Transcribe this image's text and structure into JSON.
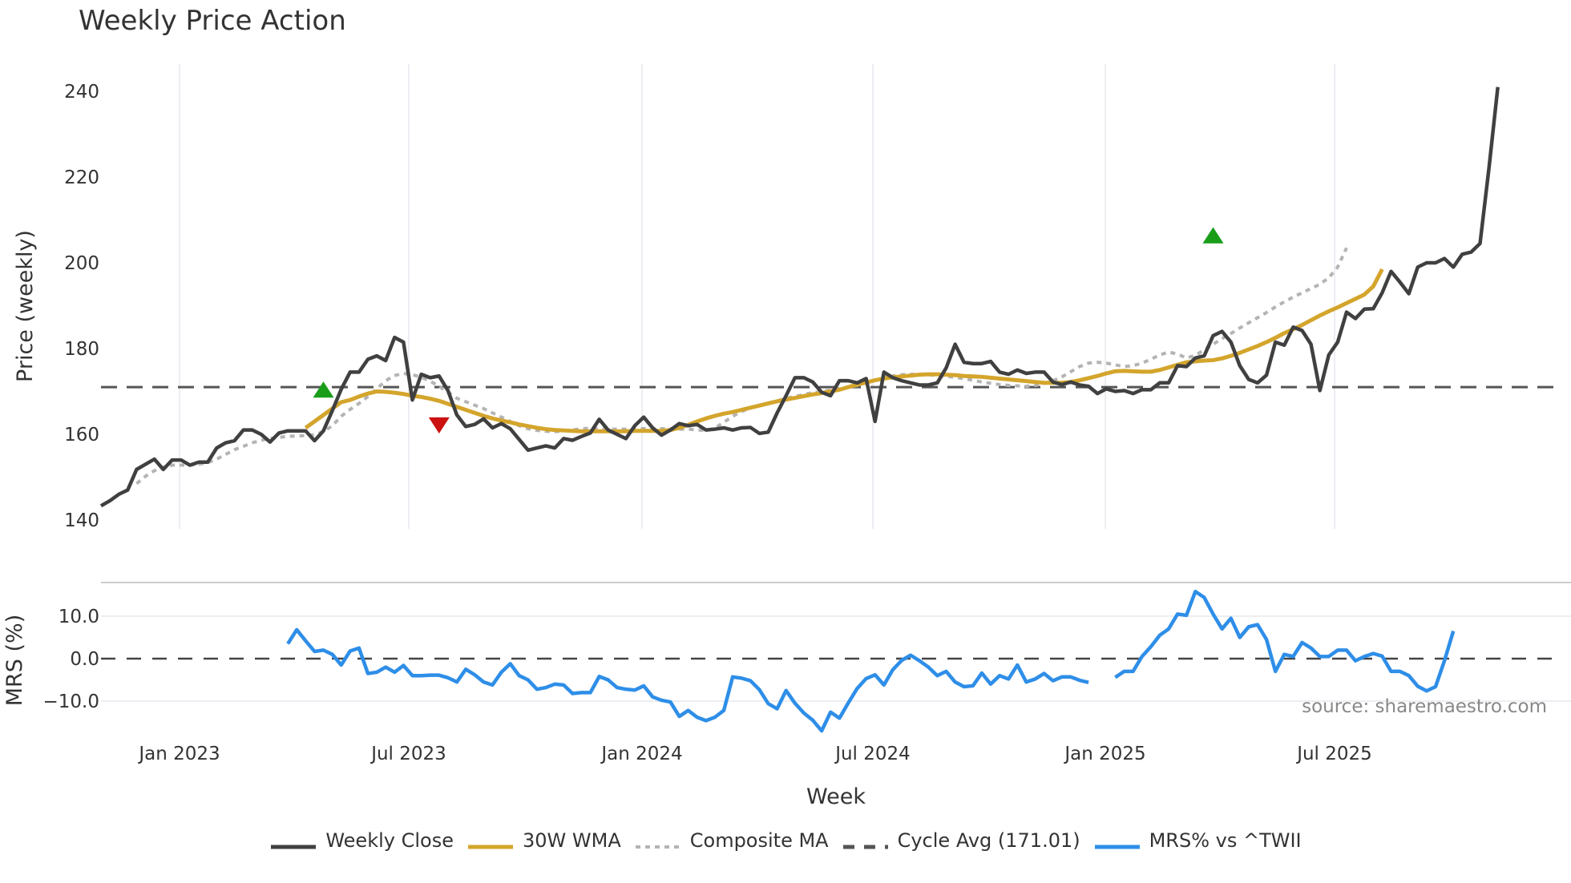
{
  "title": "Weekly Price Action",
  "source_note": "source: sharemaestro.com",
  "legend": [
    {
      "label": "Weekly Close",
      "color": "#404040",
      "style": "solid"
    },
    {
      "label": "30W WMA",
      "color": "#D4A52C",
      "style": "solid"
    },
    {
      "label": "Composite MA",
      "color": "#B4B4B4",
      "style": "dotted"
    },
    {
      "label": "Cycle Avg (171.01)",
      "color": "#555555",
      "style": "dashed"
    },
    {
      "label": "MRS% vs ^TWII",
      "color": "#2E8EE8",
      "style": "solid"
    }
  ],
  "chart_data": [
    {
      "type": "line",
      "title": "Weekly Price Action",
      "xlabel": "Week",
      "ylabel": "Price (weekly)",
      "ylim": [
        140,
        240
      ],
      "yticks": [
        140,
        160,
        180,
        200,
        220,
        240
      ],
      "xticks": [
        "Jan 2023",
        "Jul 2023",
        "Jan 2024",
        "Jul 2024",
        "Jan 2025",
        "Jul 2025"
      ],
      "grid": "vertical",
      "legend_position": "bottom",
      "week_start": "2022-11-07",
      "series": [
        {
          "name": "Weekly Close",
          "color": "#404040",
          "values": [
            143.3,
            144.5,
            146.0,
            147.0,
            151.8,
            153.0,
            154.2,
            151.8,
            154.0,
            154.0,
            152.8,
            153.5,
            153.5,
            156.8,
            158.0,
            158.5,
            161.0,
            161.0,
            160.0,
            158.2,
            160.3,
            160.8,
            160.8,
            160.8,
            158.5,
            160.8,
            165.5,
            170.5,
            174.5,
            174.5,
            177.5,
            178.3,
            177.2,
            182.6,
            181.5,
            168.0,
            174.0,
            173.2,
            173.6,
            170.2,
            164.5,
            161.8,
            162.3,
            163.6,
            161.5,
            162.5,
            161.3,
            158.8,
            156.3,
            156.8,
            157.3,
            156.8,
            159.0,
            158.6,
            159.5,
            160.3,
            163.5,
            161.0,
            160.0,
            159.0,
            162.0,
            164.0,
            161.5,
            159.8,
            161.0,
            162.5,
            162.0,
            162.3,
            161.0,
            161.2,
            161.5,
            161.0,
            161.5,
            161.6,
            160.2,
            160.5,
            165.0,
            169.0,
            173.2,
            173.2,
            172.2,
            169.8,
            169.0,
            172.5,
            172.5,
            172.0,
            173.0,
            163.0,
            174.5,
            173.2,
            172.5,
            172.0,
            171.5,
            171.5,
            172.0,
            175.5,
            181.0,
            176.8,
            176.5,
            176.5,
            177.0,
            174.5,
            174.0,
            175.0,
            174.2,
            174.5,
            174.5,
            172.2,
            171.6,
            172.2,
            171.5,
            171.2,
            169.5,
            170.6,
            170.0,
            170.2,
            169.5,
            170.4,
            170.4,
            172.0,
            172.0,
            176.0,
            175.8,
            177.8,
            178.3,
            183.0,
            184.0,
            181.5,
            176.0,
            172.8,
            172.0,
            173.8,
            181.5,
            180.8,
            185.0,
            184.2,
            181.0,
            170.2,
            178.5,
            181.5,
            188.5,
            187.0,
            189.2,
            189.3,
            193.0,
            198.0,
            195.5,
            192.8,
            199.0,
            200.0,
            200.0,
            201.0,
            199.0,
            202.0,
            202.5,
            204.5,
            222.0,
            241.0
          ]
        },
        {
          "name": "30W WMA",
          "color": "#D4A52C",
          "start_index": 23,
          "values": [
            161.5,
            163.0,
            164.5,
            166.0,
            167.5,
            168.0,
            168.8,
            169.5,
            170.0,
            169.9,
            169.7,
            169.4,
            169.0,
            168.7,
            168.3,
            167.8,
            167.1,
            166.4,
            165.7,
            165.0,
            164.3,
            163.7,
            163.2,
            162.8,
            162.3,
            161.9,
            161.5,
            161.2,
            161.0,
            160.9,
            160.8,
            160.7,
            160.7,
            160.7,
            160.7,
            160.7,
            160.7,
            160.8,
            160.8,
            160.8,
            160.8,
            161.0,
            161.5,
            162.2,
            163.0,
            163.7,
            164.3,
            164.8,
            165.2,
            165.7,
            166.2,
            166.7,
            167.2,
            167.7,
            168.1,
            168.5,
            168.9,
            169.3,
            169.6,
            170.0,
            170.4,
            171.0,
            171.6,
            172.1,
            172.6,
            173.0,
            173.3,
            173.5,
            173.7,
            173.9,
            174.0,
            174.0,
            173.9,
            173.8,
            173.6,
            173.5,
            173.4,
            173.2,
            173.0,
            172.8,
            172.6,
            172.4,
            172.2,
            172.0,
            172.0,
            172.0,
            172.2,
            172.6,
            173.1,
            173.6,
            174.2,
            174.7,
            174.8,
            174.7,
            174.6,
            174.6,
            175.0,
            175.6,
            176.2,
            176.8,
            177.0,
            177.2,
            177.3,
            177.7,
            178.3,
            179.0,
            179.8,
            180.6,
            181.5,
            182.5,
            183.6,
            184.5,
            185.5,
            186.6,
            187.7,
            188.7,
            189.6,
            190.6,
            191.6,
            192.6,
            194.5,
            198.5
          ]
        },
        {
          "name": "Composite MA",
          "color": "#B4B4B4",
          "start_index": 4,
          "values": [
            148.5,
            150.2,
            151.5,
            152.3,
            152.8,
            152.8,
            152.8,
            153.0,
            153.4,
            154.2,
            155.3,
            156.4,
            157.2,
            158.0,
            158.6,
            159.0,
            159.3,
            159.5,
            159.6,
            159.7,
            159.9,
            160.6,
            162.0,
            164.2,
            165.8,
            167.2,
            168.8,
            170.6,
            172.5,
            173.7,
            174.2,
            173.9,
            173.3,
            172.4,
            171.2,
            169.8,
            168.4,
            167.6,
            166.8,
            166.0,
            165.0,
            164.0,
            163.0,
            162.0,
            161.3,
            160.9,
            160.7,
            160.6,
            160.8,
            161.0,
            161.3,
            161.4,
            161.3,
            161.2,
            161.2,
            161.2,
            161.3,
            161.3,
            161.3,
            161.3,
            161.3,
            161.2,
            161.2,
            161.0,
            160.9,
            161.4,
            162.8,
            164.2,
            165.3,
            166.2,
            166.8,
            167.3,
            167.8,
            168.4,
            168.8,
            169.3,
            169.7,
            170.0,
            170.3,
            170.7,
            171.0,
            171.4,
            172.0,
            172.7,
            173.2,
            173.6,
            173.9,
            174.0,
            174.0,
            173.9,
            173.7,
            173.5,
            173.3,
            173.0,
            172.6,
            172.2,
            171.9,
            171.6,
            171.4,
            171.3,
            171.2,
            171.4,
            171.8,
            172.5,
            173.4,
            174.6,
            175.8,
            176.6,
            176.8,
            176.6,
            176.2,
            175.8,
            176.0,
            176.6,
            177.5,
            178.5,
            179.2,
            178.7,
            177.8,
            178.4,
            179.7,
            181.0,
            182.3,
            183.5,
            184.8,
            186.0,
            187.2,
            188.4,
            189.7,
            190.9,
            192.0,
            193.0,
            194.0,
            195.0,
            196.5,
            199.0,
            203.5
          ]
        },
        {
          "name": "Cycle Avg (171.01)",
          "color": "#555555",
          "constant": 171.01
        }
      ],
      "signals": [
        {
          "type": "buy",
          "marker": "triangle-up",
          "color": "#1A9E1A",
          "index": 25,
          "value": 170.0
        },
        {
          "type": "sell",
          "marker": "triangle-down",
          "color": "#CC1111",
          "index": 38,
          "value": 162.5
        },
        {
          "type": "buy",
          "marker": "triangle-up",
          "color": "#1A9E1A",
          "index": 125,
          "value": 206.0
        }
      ]
    },
    {
      "type": "line",
      "title": "",
      "xlabel": "Week",
      "ylabel": "MRS (%)",
      "ylim": [
        -17.5,
        17.5
      ],
      "yticks": [
        -10.0,
        0.0,
        10.0
      ],
      "reference_line": 0.0,
      "series": [
        {
          "name": "MRS% vs ^TWII",
          "color": "#2E8EE8",
          "start_index": 21,
          "values": [
            3.5,
            6.8,
            4.2,
            1.7,
            2.0,
            1.0,
            -1.5,
            1.8,
            2.5,
            -3.5,
            -3.2,
            -2.0,
            -3.2,
            -1.6,
            -4.0,
            -4.0,
            -3.9,
            -3.9,
            -4.5,
            -5.5,
            -2.5,
            -3.8,
            -5.5,
            -6.2,
            -3.2,
            -1.2,
            -4.0,
            -5.0,
            -7.2,
            -6.8,
            -6.0,
            -6.2,
            -8.2,
            -8.0,
            -8.0,
            -4.2,
            -5.0,
            -6.8,
            -7.2,
            -7.4,
            -6.4,
            -9.0,
            -9.8,
            -10.2,
            -13.6,
            -12.2,
            -13.8,
            -14.6,
            -13.8,
            -12.2,
            -4.3,
            -4.6,
            -5.2,
            -7.3,
            -10.6,
            -11.8,
            -7.5,
            -10.5,
            -12.8,
            -14.5,
            -17.0,
            -12.6,
            -14.0,
            -10.4,
            -7.0,
            -4.7,
            -3.8,
            -6.2,
            -2.6,
            -0.4,
            0.8,
            -0.5,
            -2.0,
            -4.0,
            -3.0,
            -5.5,
            -6.6,
            -6.4,
            -3.4,
            -6.0,
            -4.0,
            -4.8,
            -1.5,
            -5.5,
            -4.8,
            -3.5,
            -5.2,
            -4.3,
            -4.3,
            -5.1,
            -5.6,
            null,
            null,
            -4.4,
            -3.0,
            -3.0,
            0.5,
            2.8,
            5.5,
            7.0,
            10.5,
            10.2,
            15.8,
            14.4,
            10.5,
            7.0,
            9.5,
            5.0,
            7.5,
            8.0,
            4.5,
            -3.0,
            1.0,
            0.5,
            3.8,
            2.5,
            0.5,
            0.5,
            2.0,
            2.0,
            -0.5,
            0.5,
            1.2,
            0.6,
            -3.0,
            -3.0,
            -4.0,
            -6.5,
            -7.6,
            -6.6,
            -0.5,
            6.5
          ]
        }
      ]
    }
  ]
}
